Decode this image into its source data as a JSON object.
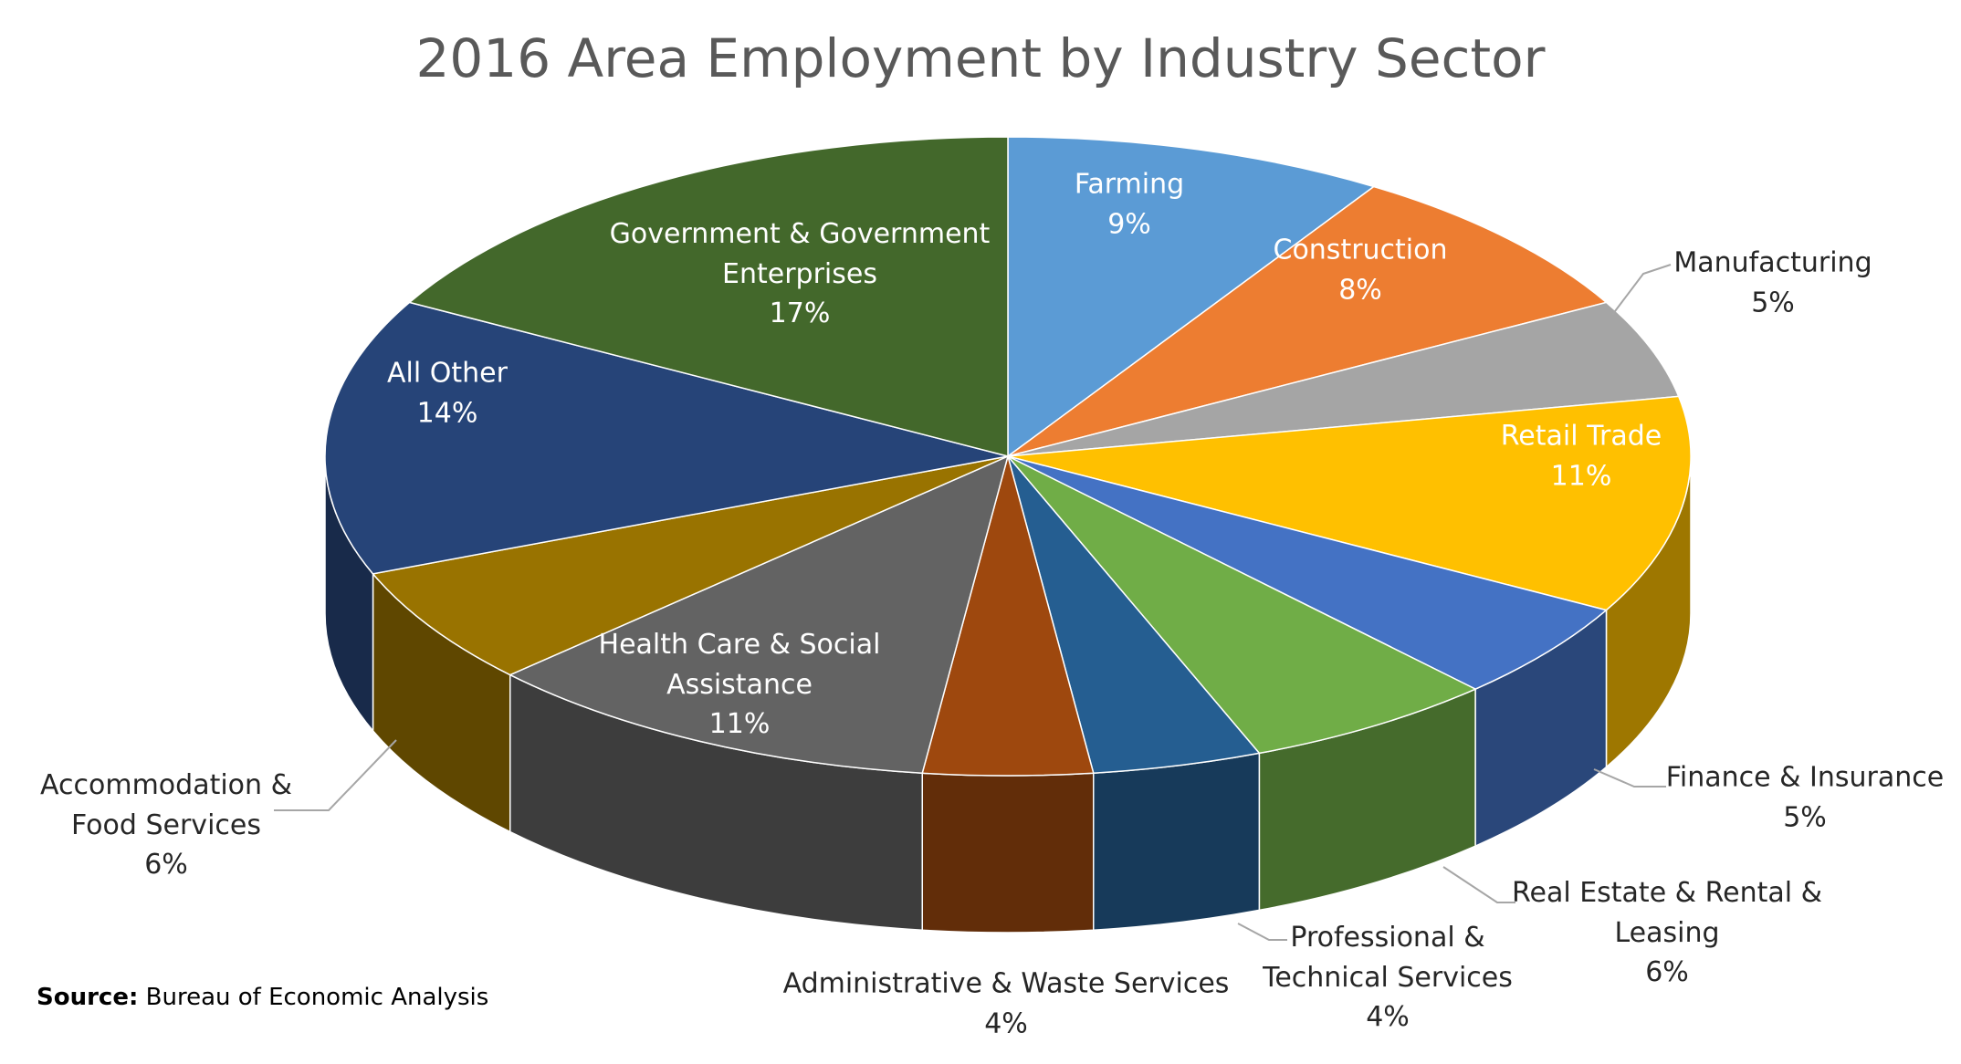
{
  "chart_data": {
    "type": "pie3d",
    "title": "2016 Area Employment by Industry Sector",
    "categories": [
      "Farming",
      "Construction",
      "Manufacturing",
      "Retail Trade",
      "Finance & Insurance",
      "Real Estate & Rental & Leasing",
      "Professional & Technical Services",
      "Administrative & Waste Services",
      "Health Care & Social Assistance",
      "Accommodation & Food Services",
      "All Other",
      "Government & Government Enterprises"
    ],
    "values": [
      9,
      8,
      5,
      11,
      5,
      6,
      4,
      4,
      11,
      6,
      14,
      17
    ],
    "value_labels": [
      "9%",
      "8%",
      "5%",
      "11%",
      "5%",
      "6%",
      "4%",
      "4%",
      "11%",
      "6%",
      "14%",
      "17%"
    ],
    "colors": [
      "#5b9bd5",
      "#ed7d31",
      "#a5a5a5",
      "#ffc000",
      "#4472c4",
      "#70ad47",
      "#255e91",
      "#9e480e",
      "#636363",
      "#997300",
      "#264478",
      "#43682b"
    ],
    "source_label": "Source:",
    "source": "Bureau of Economic Analysis"
  }
}
